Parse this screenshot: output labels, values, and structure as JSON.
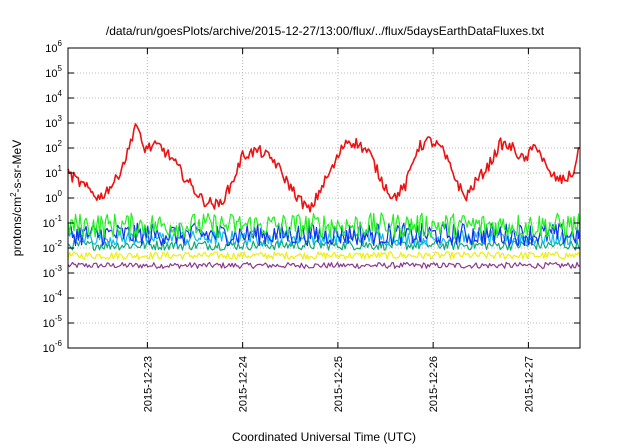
{
  "chart_data": {
    "type": "line",
    "title": "/data/run/goesPlots/archive/2015-12-27/13:00/flux/../flux/5daysEarthDataFluxes.txt",
    "xlabel": "Coordinated Universal Time (UTC)",
    "ylabel": {
      "base": "protons/cm",
      "sup": "2",
      "rest": "-s-sr-MeV"
    },
    "y_scale": "log",
    "ylim": [
      1e-06,
      1000000.0
    ],
    "y_ticks": [
      {
        "base": "10",
        "exp": "-6"
      },
      {
        "base": "10",
        "exp": "-5"
      },
      {
        "base": "10",
        "exp": "-4"
      },
      {
        "base": "10",
        "exp": "-3"
      },
      {
        "base": "10",
        "exp": "-2"
      },
      {
        "base": "10",
        "exp": "-1"
      },
      {
        "base": "10",
        "exp": "0"
      },
      {
        "base": "10",
        "exp": "1"
      },
      {
        "base": "10",
        "exp": "2"
      },
      {
        "base": "10",
        "exp": "3"
      },
      {
        "base": "10",
        "exp": "4"
      },
      {
        "base": "10",
        "exp": "5"
      },
      {
        "base": "10",
        "exp": "6"
      }
    ],
    "x_range": [
      "2015-12-22 04:00",
      "2015-12-27 13:00"
    ],
    "x_ticks": [
      "2015-12-23",
      "2015-12-24",
      "2015-12-25",
      "2015-12-26",
      "2015-12-27"
    ],
    "grid": true,
    "series": [
      {
        "color": "#ee1111",
        "x": [
          "2015-12-22 04:00",
          "2015-12-22 08:00",
          "2015-12-22 12:00",
          "2015-12-22 16:00",
          "2015-12-22 19:00",
          "2015-12-22 21:00",
          "2015-12-22 23:00",
          "2015-12-23 03:00",
          "2015-12-23 06:00",
          "2015-12-23 10:00",
          "2015-12-23 14:00",
          "2015-12-23 18:00",
          "2015-12-23 21:00",
          "2015-12-24 00:00",
          "2015-12-24 04:00",
          "2015-12-24 08:00",
          "2015-12-24 11:00",
          "2015-12-24 14:00",
          "2015-12-24 17:00",
          "2015-12-24 20:00",
          "2015-12-24 23:00",
          "2015-12-25 02:00",
          "2015-12-25 05:00",
          "2015-12-25 08:00",
          "2015-12-25 11:00",
          "2015-12-25 14:00",
          "2015-12-25 17:00",
          "2015-12-25 20:00",
          "2015-12-25 23:00",
          "2015-12-26 02:00",
          "2015-12-26 05:00",
          "2015-12-26 08:00",
          "2015-12-26 11:00",
          "2015-12-26 14:00",
          "2015-12-26 17:00",
          "2015-12-26 20:00",
          "2015-12-26 23:00",
          "2015-12-27 02:00",
          "2015-12-27 05:00",
          "2015-12-27 08:00",
          "2015-12-27 11:00",
          "2015-12-27 13:00"
        ],
        "values": [
          10,
          3,
          1,
          5,
          60,
          1000,
          100,
          120,
          40,
          5,
          0.8,
          0.5,
          3,
          50,
          80,
          30,
          5,
          1,
          0.3,
          3,
          20,
          200,
          150,
          60,
          5,
          1,
          3,
          100,
          200,
          100,
          10,
          1,
          5,
          20,
          150,
          100,
          30,
          150,
          10,
          5,
          8,
          100
        ]
      },
      {
        "color": "#22ee22",
        "noisy": true,
        "level": 0.08,
        "spread": 0.5
      },
      {
        "color": "#1133ee",
        "noisy": true,
        "level": 0.035,
        "spread": 0.45
      },
      {
        "color": "#11bbee",
        "noisy": true,
        "level": 0.025,
        "spread": 0.3
      },
      {
        "color": "#11aa77",
        "noisy": true,
        "level": 0.013,
        "spread": 0.2
      },
      {
        "color": "#eeee11",
        "noisy": true,
        "level": 0.005,
        "spread": 0.15
      },
      {
        "color": "#8b3a8b",
        "noisy": true,
        "level": 0.002,
        "spread": 0.12
      }
    ]
  }
}
